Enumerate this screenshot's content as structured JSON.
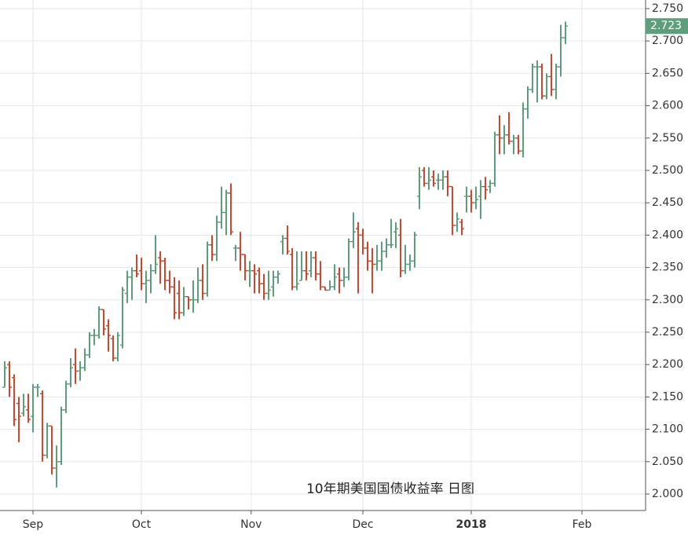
{
  "chart_data": {
    "type": "ohlc",
    "annotation": "10年期美国国债收益率 日图",
    "up_color": "#5f9e7c",
    "down_color": "#d2452d",
    "grid": true,
    "ylim": [
      1.9745,
      2.7633
    ],
    "yticks": [
      {
        "value": 2.0,
        "label": "2.000"
      },
      {
        "value": 2.05,
        "label": "2.050"
      },
      {
        "value": 2.1,
        "label": "2.100"
      },
      {
        "value": 2.15,
        "label": "2.150"
      },
      {
        "value": 2.2,
        "label": "2.200"
      },
      {
        "value": 2.25,
        "label": "2.250"
      },
      {
        "value": 2.3,
        "label": "2.300"
      },
      {
        "value": 2.35,
        "label": "2.350"
      },
      {
        "value": 2.4,
        "label": "2.400"
      },
      {
        "value": 2.45,
        "label": "2.450"
      },
      {
        "value": 2.5,
        "label": "2.500"
      },
      {
        "value": 2.55,
        "label": "2.550"
      },
      {
        "value": 2.6,
        "label": "2.600"
      },
      {
        "value": 2.65,
        "label": "2.650"
      },
      {
        "value": 2.7,
        "label": "2.700"
      },
      {
        "value": 2.75,
        "label": "2.750"
      }
    ],
    "xlim": [
      -1,
      136
    ],
    "xticks": [
      {
        "value": 6,
        "label": "Sep"
      },
      {
        "value": 29,
        "label": "Oct"
      },
      {
        "value": 52.3,
        "label": "Nov"
      },
      {
        "value": 76,
        "label": "Dec"
      },
      {
        "value": 99,
        "label": "2018"
      },
      {
        "value": 122.5,
        "label": "Feb"
      }
    ],
    "series": {
      "open": [
        2.165,
        2.2,
        2.18,
        2.14,
        2.125,
        2.13,
        2.12,
        2.165,
        2.155,
        2.06,
        2.105,
        2.04,
        2.05,
        2.13,
        2.17,
        2.2,
        2.19,
        2.195,
        2.215,
        2.245,
        2.245,
        2.285,
        2.26,
        2.24,
        2.21,
        2.23,
        2.31,
        2.335,
        2.345,
        2.345,
        2.325,
        2.33,
        2.345,
        2.365,
        2.36,
        2.33,
        2.32,
        2.31,
        2.28,
        2.305,
        2.3,
        2.3,
        2.33,
        2.31,
        2.385,
        2.37,
        2.42,
        2.435,
        2.465,
        2.38,
        2.38,
        2.37,
        2.345,
        2.345,
        2.345,
        2.325,
        2.31,
        2.32,
        2.335,
        2.39,
        2.395,
        2.37,
        2.32,
        2.33,
        2.345,
        2.345,
        2.365,
        2.34,
        2.32,
        2.315,
        2.32,
        2.34,
        2.33,
        2.335,
        2.39,
        2.41,
        2.4,
        2.38,
        2.36,
        2.355,
        2.36,
        2.375,
        2.385,
        2.405,
        2.4,
        2.345,
        2.355,
        2.36,
        2.46,
        2.5,
        2.48,
        2.49,
        2.485,
        2.485,
        2.49,
        2.475,
        2.415,
        2.42,
        2.46,
        2.46,
        2.45,
        2.46,
        2.475,
        2.475,
        2.48,
        2.555,
        2.55,
        2.555,
        2.545,
        2.55,
        2.53,
        2.595,
        2.625,
        2.66,
        2.66,
        2.615,
        2.645,
        2.625,
        2.66,
        2.705
      ],
      "high": [
        2.205,
        2.205,
        2.185,
        2.15,
        2.155,
        2.155,
        2.17,
        2.17,
        2.16,
        2.11,
        2.105,
        2.075,
        2.135,
        2.175,
        2.21,
        2.225,
        2.205,
        2.225,
        2.25,
        2.255,
        2.29,
        2.285,
        2.27,
        2.245,
        2.25,
        2.32,
        2.345,
        2.35,
        2.37,
        2.365,
        2.345,
        2.355,
        2.4,
        2.375,
        2.365,
        2.345,
        2.335,
        2.33,
        2.32,
        2.305,
        2.33,
        2.35,
        2.355,
        2.39,
        2.4,
        2.43,
        2.475,
        2.47,
        2.48,
        2.385,
        2.405,
        2.37,
        2.36,
        2.355,
        2.35,
        2.34,
        2.345,
        2.345,
        2.345,
        2.4,
        2.415,
        2.38,
        2.375,
        2.375,
        2.375,
        2.375,
        2.375,
        2.36,
        2.32,
        2.33,
        2.355,
        2.35,
        2.35,
        2.395,
        2.435,
        2.42,
        2.41,
        2.39,
        2.38,
        2.385,
        2.39,
        2.395,
        2.425,
        2.42,
        2.425,
        2.385,
        2.37,
        2.405,
        2.505,
        2.505,
        2.505,
        2.5,
        2.495,
        2.5,
        2.5,
        2.475,
        2.435,
        2.425,
        2.475,
        2.47,
        2.475,
        2.485,
        2.49,
        2.485,
        2.56,
        2.585,
        2.57,
        2.59,
        2.555,
        2.555,
        2.605,
        2.63,
        2.665,
        2.67,
        2.665,
        2.65,
        2.68,
        2.665,
        2.725,
        2.73
      ],
      "low": [
        2.165,
        2.15,
        2.105,
        2.08,
        2.12,
        2.11,
        2.095,
        2.15,
        2.05,
        2.055,
        2.03,
        2.01,
        2.045,
        2.125,
        2.165,
        2.17,
        2.175,
        2.19,
        2.21,
        2.23,
        2.24,
        2.245,
        2.22,
        2.205,
        2.205,
        2.225,
        2.295,
        2.3,
        2.335,
        2.315,
        2.295,
        2.31,
        2.34,
        2.325,
        2.315,
        2.31,
        2.27,
        2.27,
        2.275,
        2.285,
        2.28,
        2.295,
        2.3,
        2.305,
        2.36,
        2.36,
        2.41,
        2.4,
        2.4,
        2.36,
        2.345,
        2.33,
        2.32,
        2.31,
        2.31,
        2.3,
        2.3,
        2.305,
        2.325,
        2.37,
        2.37,
        2.315,
        2.315,
        2.33,
        2.33,
        2.335,
        2.33,
        2.315,
        2.315,
        2.315,
        2.315,
        2.31,
        2.32,
        2.33,
        2.38,
        2.31,
        2.37,
        2.345,
        2.31,
        2.345,
        2.345,
        2.365,
        2.38,
        2.38,
        2.335,
        2.34,
        2.345,
        2.35,
        2.44,
        2.475,
        2.47,
        2.475,
        2.47,
        2.47,
        2.46,
        2.4,
        2.405,
        2.4,
        2.435,
        2.435,
        2.44,
        2.425,
        2.455,
        2.465,
        2.475,
        2.525,
        2.525,
        2.54,
        2.525,
        2.525,
        2.52,
        2.58,
        2.62,
        2.605,
        2.61,
        2.61,
        2.615,
        2.61,
        2.645,
        2.695
      ],
      "close": [
        2.195,
        2.165,
        2.115,
        2.12,
        2.135,
        2.115,
        2.165,
        2.165,
        2.06,
        2.105,
        2.04,
        2.05,
        2.13,
        2.17,
        2.195,
        2.19,
        2.195,
        2.215,
        2.245,
        2.245,
        2.285,
        2.255,
        2.245,
        2.21,
        2.245,
        2.315,
        2.335,
        2.345,
        2.34,
        2.325,
        2.33,
        2.345,
        2.355,
        2.36,
        2.33,
        2.32,
        2.28,
        2.28,
        2.305,
        2.3,
        2.3,
        2.33,
        2.31,
        2.385,
        2.37,
        2.42,
        2.435,
        2.465,
        2.405,
        2.38,
        2.37,
        2.345,
        2.345,
        2.34,
        2.325,
        2.31,
        2.315,
        2.335,
        2.34,
        2.395,
        2.375,
        2.32,
        2.325,
        2.345,
        2.34,
        2.365,
        2.34,
        2.32,
        2.315,
        2.32,
        2.335,
        2.33,
        2.335,
        2.39,
        2.405,
        2.4,
        2.38,
        2.36,
        2.355,
        2.36,
        2.375,
        2.385,
        2.385,
        2.41,
        2.345,
        2.355,
        2.36,
        2.4,
        2.49,
        2.48,
        2.485,
        2.48,
        2.485,
        2.49,
        2.475,
        2.415,
        2.425,
        2.41,
        2.46,
        2.45,
        2.455,
        2.475,
        2.47,
        2.48,
        2.555,
        2.55,
        2.555,
        2.545,
        2.55,
        2.53,
        2.595,
        2.625,
        2.66,
        2.66,
        2.615,
        2.645,
        2.625,
        2.66,
        2.705,
        2.723
      ]
    }
  }
}
